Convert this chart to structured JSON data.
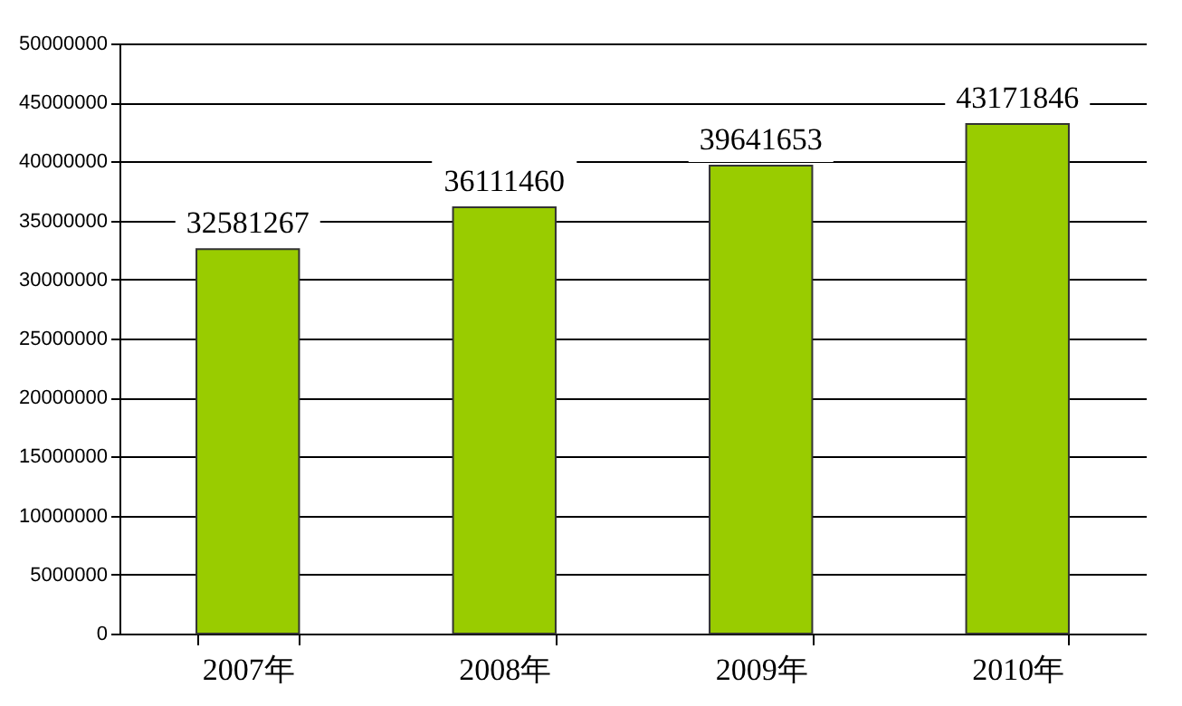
{
  "chart_data": {
    "type": "bar",
    "categories": [
      "2007年",
      "2008年",
      "2009年",
      "2010年"
    ],
    "values": [
      32581267,
      36111460,
      39641653,
      43171846
    ],
    "color": "#99cc00",
    "ylim": [
      0,
      50000000
    ],
    "yticks": [
      0,
      5000000,
      10000000,
      15000000,
      20000000,
      25000000,
      30000000,
      35000000,
      40000000,
      45000000,
      50000000
    ],
    "grid": "y",
    "data_labels": true
  }
}
